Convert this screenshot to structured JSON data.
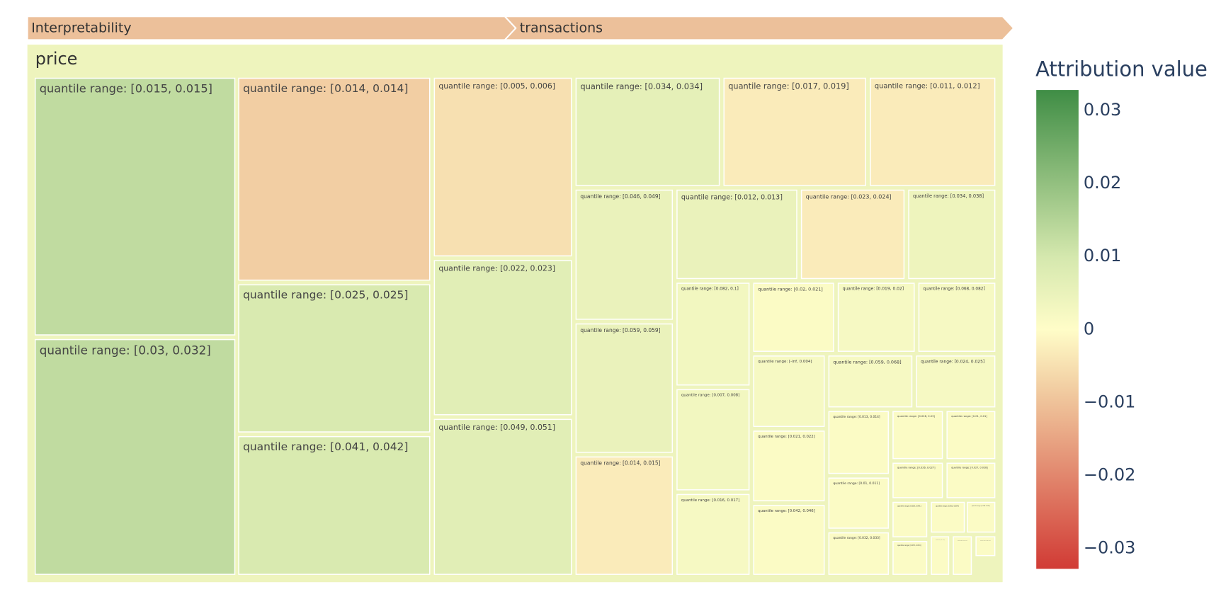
{
  "chart_data": {
    "type": "treemap",
    "pathbar": {
      "labels": [
        "Interpretability",
        "transactions"
      ],
      "color": "#ecc09a"
    },
    "root": {
      "label": "price",
      "value": 0.004
    },
    "tiles": [
      {
        "label": "quantile range: [0.015, 0.015]",
        "value": 0.013
      },
      {
        "label": "quantile range: [0.03, 0.032]",
        "value": 0.013
      },
      {
        "label": "quantile range: [0.014, 0.014]",
        "value": -0.008
      },
      {
        "label": "quantile range: [0.025, 0.025]",
        "value": 0.009
      },
      {
        "label": "quantile range: [0.041, 0.042]",
        "value": 0.009
      },
      {
        "label": "quantile range: [0.005, 0.006]",
        "value": -0.005
      },
      {
        "label": "quantile range: [0.022, 0.023]",
        "value": 0.007
      },
      {
        "label": "quantile range: [0.049, 0.051]",
        "value": 0.007
      },
      {
        "label": "quantile range: [0.034, 0.034]",
        "value": 0.006
      },
      {
        "label": "quantile range: [0.017, 0.019]",
        "value": -0.003
      },
      {
        "label": "quantile range: [0.011, 0.012]",
        "value": -0.003
      },
      {
        "label": "quantile range: [0.046, 0.049]",
        "value": 0.005
      },
      {
        "label": "quantile range: [0.012, 0.013]",
        "value": 0.005
      },
      {
        "label": "quantile range: [0.023, 0.024]",
        "value": -0.003
      },
      {
        "label": "quantile range: [0.034, 0.038]",
        "value": 0.004
      },
      {
        "label": "quantile range: [0.059, 0.059]",
        "value": 0.005
      },
      {
        "label": "quantile range: [0.014, 0.015]",
        "value": -0.003
      },
      {
        "label": "quantile range: [0.082, 0.1]",
        "value": 0.003
      },
      {
        "label": "quantile range: [0.02, 0.021]",
        "value": 0.001
      },
      {
        "label": "quantile range: [0.019, 0.02]",
        "value": 0.002
      },
      {
        "label": "quantile range: [0.068, 0.082]",
        "value": 0.002
      },
      {
        "label": "quantile range: [0.007, 0.008]",
        "value": 0.003
      },
      {
        "label": "quantile range: [-inf, 0.004]",
        "value": 0.002
      },
      {
        "label": "quantile range: [0.059, 0.068]",
        "value": 0.002
      },
      {
        "label": "quantile range: [0.024, 0.025]",
        "value": 0.002
      },
      {
        "label": "quantile range: [0.016, 0.017]",
        "value": 0.002
      },
      {
        "label": "quantile range: [0.021, 0.022]",
        "value": 0.001
      },
      {
        "label": "quantile range: [0.042, 0.046]",
        "value": 0.001
      },
      {
        "label": "quantile range: [0.013, 0.014]",
        "value": 0.001
      },
      {
        "label": "quantile range: [0.028, 0.03]",
        "value": 0.001
      },
      {
        "label": "quantile range: [0.01, 0.01]",
        "value": 0.001
      },
      {
        "label": "quantile range: [0.01, 0.011]",
        "value": 0.001
      },
      {
        "label": "quantile range: [0.026, 0.027]",
        "value": 0.001
      },
      {
        "label": "quantile range: [0.027, 0.028]",
        "value": 0.001
      },
      {
        "label": "quantile range: [0.032, 0.033]",
        "value": 0.001
      },
      {
        "label": "quantile range: [0.038, 0.041]",
        "value": 0.001
      },
      {
        "label": "quantile range: [0.051, 0.054]",
        "value": 0.001
      },
      {
        "label": "quantile range: [0.054, 0.057]",
        "value": 0.001
      },
      {
        "label": "quantile range: [0.033, 0.034]",
        "value": 0.001
      },
      {
        "label": "quantile range: [0.004, 0.005]",
        "value": 0.001
      },
      {
        "label": "quantile range: [0.006, 0.007]",
        "value": 0.001
      },
      {
        "label": "quantile range: [0.008, 0.009]",
        "value": 0.001
      }
    ],
    "colorbar": {
      "title": "Attribution value",
      "clim": [
        -0.0328,
        0.0328
      ],
      "ticks": [
        {
          "value": -0.03,
          "label": "−0.03"
        },
        {
          "value": -0.02,
          "label": "−0.02"
        },
        {
          "value": -0.01,
          "label": "−0.01"
        },
        0,
        0.01,
        0.02,
        0.03
      ]
    },
    "colorscale": [
      [
        0,
        "#d13b35"
      ],
      [
        0.35,
        "#efc39a"
      ],
      [
        0.5,
        "#fffdc8"
      ],
      [
        0.65,
        "#d5e8ae"
      ],
      [
        1,
        "#3f8d45"
      ]
    ]
  }
}
